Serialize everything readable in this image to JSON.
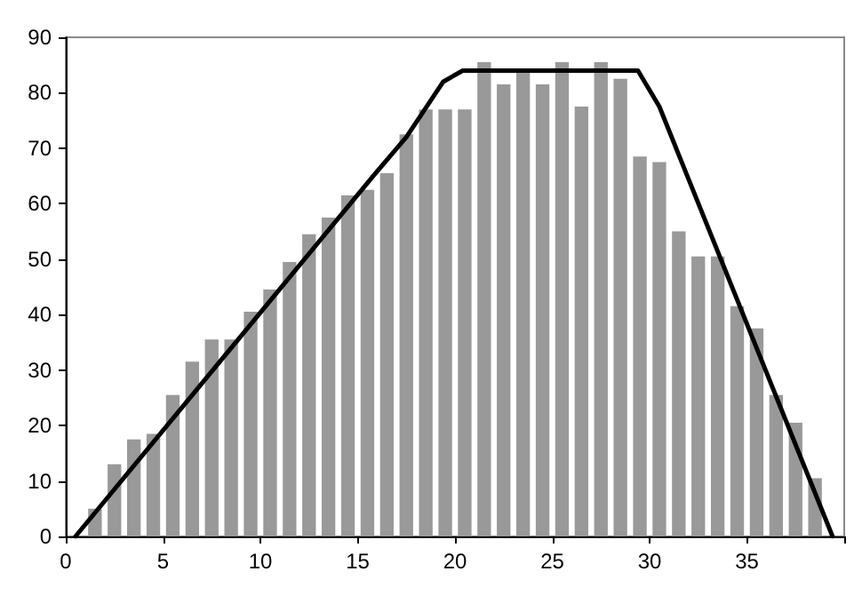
{
  "chart_data": {
    "type": "bar",
    "xlim": [
      0,
      40
    ],
    "xticks": [
      0,
      5,
      10,
      15,
      20,
      25,
      30,
      35,
      {
        "value": 40,
        "label": null
      }
    ],
    "ylim": [
      0,
      90
    ],
    "yticks": [
      0,
      10,
      20,
      30,
      40,
      50,
      60,
      70,
      80,
      90
    ],
    "grid": false,
    "series": [
      {
        "color": "#999999",
        "x": [
          1.5,
          2.5,
          3.5,
          4.5,
          5.5,
          6.5,
          7.5,
          8.5,
          9.5,
          10.5,
          11.5,
          12.5,
          13.5,
          14.5,
          15.5,
          16.5,
          17.5,
          18.5,
          19.5,
          20.5,
          21.5,
          22.5,
          23.5,
          24.5,
          25.5,
          26.5,
          27.5,
          28.5,
          29.5,
          30.5,
          31.5,
          32.5,
          33.5,
          34.5,
          35.5,
          36.5,
          37.5,
          38.5
        ],
        "values": [
          5,
          13,
          17.5,
          18.5,
          25.5,
          31.5,
          35.5,
          35.5,
          40.5,
          44.5,
          49.5,
          54.5,
          57.5,
          61.5,
          62.5,
          65.5,
          72.5,
          77,
          77,
          77,
          85.5,
          81.5,
          84,
          81.5,
          85.5,
          77.5,
          85.5,
          82.5,
          68.5,
          67.5,
          55,
          50.5,
          50.5,
          41.5,
          37.5,
          25.5,
          20.5,
          10.5
        ]
      },
      {
        "type": "line",
        "color": "#000000",
        "x": [
          0.5,
          15.8,
          17.5,
          19.4,
          20.4,
          29.4,
          30.5,
          39.4
        ],
        "values": [
          0,
          65,
          72,
          82,
          84,
          84,
          77.5,
          0
        ]
      }
    ]
  }
}
